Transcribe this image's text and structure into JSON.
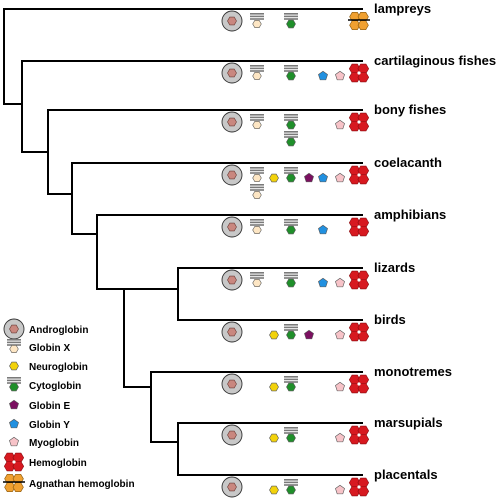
{
  "taxa": [
    {
      "name": "lampreys",
      "genes": [
        "androglobin",
        "cytoglobin-framed-dup",
        "cytoglobin-framed",
        "agnathan-hemoglobin"
      ]
    },
    {
      "name": "cartilaginous fishes",
      "genes": [
        "androglobin",
        "globin-x-framed",
        "cytoglobin-framed",
        "globin-y",
        "myoglobin",
        "hemoglobin"
      ]
    },
    {
      "name": "bony fishes",
      "genes": [
        "androglobin",
        "globin-x-framed",
        "cytoglobin-stack",
        "myoglobin",
        "hemoglobin"
      ]
    },
    {
      "name": "coelacanth",
      "genes": [
        "androglobin",
        "globin-x-stack",
        "neuroglobin",
        "cytoglobin-framed",
        "globin-e",
        "globin-y",
        "myoglobin",
        "hemoglobin"
      ]
    },
    {
      "name": "amphibians",
      "genes": [
        "androglobin",
        "globin-x-framed",
        "cytoglobin-framed",
        "globin-y",
        "hemoglobin"
      ]
    },
    {
      "name": "lizards",
      "genes": [
        "androglobin",
        "globin-x-framed",
        "cytoglobin-framed",
        "globin-y",
        "myoglobin",
        "hemoglobin"
      ]
    },
    {
      "name": "birds",
      "genes": [
        "androglobin",
        "neuroglobin",
        "cytoglobin-framed",
        "globin-e",
        "myoglobin",
        "hemoglobin"
      ]
    },
    {
      "name": "monotremes",
      "genes": [
        "androglobin",
        "neuroglobin",
        "cytoglobin-framed",
        "myoglobin",
        "hemoglobin"
      ]
    },
    {
      "name": "marsupials",
      "genes": [
        "androglobin",
        "neuroglobin",
        "cytoglobin-framed",
        "myoglobin",
        "hemoglobin"
      ]
    },
    {
      "name": "placentals",
      "genes": [
        "androglobin",
        "neuroglobin",
        "cytoglobin-framed",
        "myoglobin",
        "hemoglobin"
      ]
    }
  ],
  "legend": [
    {
      "key": "androglobin",
      "label": "Androglobin"
    },
    {
      "key": "globin-x",
      "label": "Globin X"
    },
    {
      "key": "neuroglobin",
      "label": "Neuroglobin"
    },
    {
      "key": "cytoglobin",
      "label": "Cytoglobin"
    },
    {
      "key": "globin-e",
      "label": "Globin E"
    },
    {
      "key": "globin-y",
      "label": "Globin Y"
    },
    {
      "key": "myoglobin",
      "label": "Myoglobin"
    },
    {
      "key": "hemoglobin",
      "label": "Hemoglobin"
    },
    {
      "key": "agnathan-hemoglobin",
      "label": "Agnathan hemoglobin"
    }
  ],
  "colors": {
    "androglobin_ring": "#c8c8c8",
    "androglobin_core": "#c9877f",
    "globin_x": "#fde6c4",
    "neuroglobin": "#f2d20a",
    "cytoglobin": "#1f8f2a",
    "globin_e": "#7b1060",
    "globin_y": "#2190e0",
    "myoglobin": "#f7c3c8",
    "hemoglobin": "#d71920",
    "agnathan_hemoglobin": "#f0a030",
    "bar": "#7a7a7a",
    "tree": "#000000"
  }
}
